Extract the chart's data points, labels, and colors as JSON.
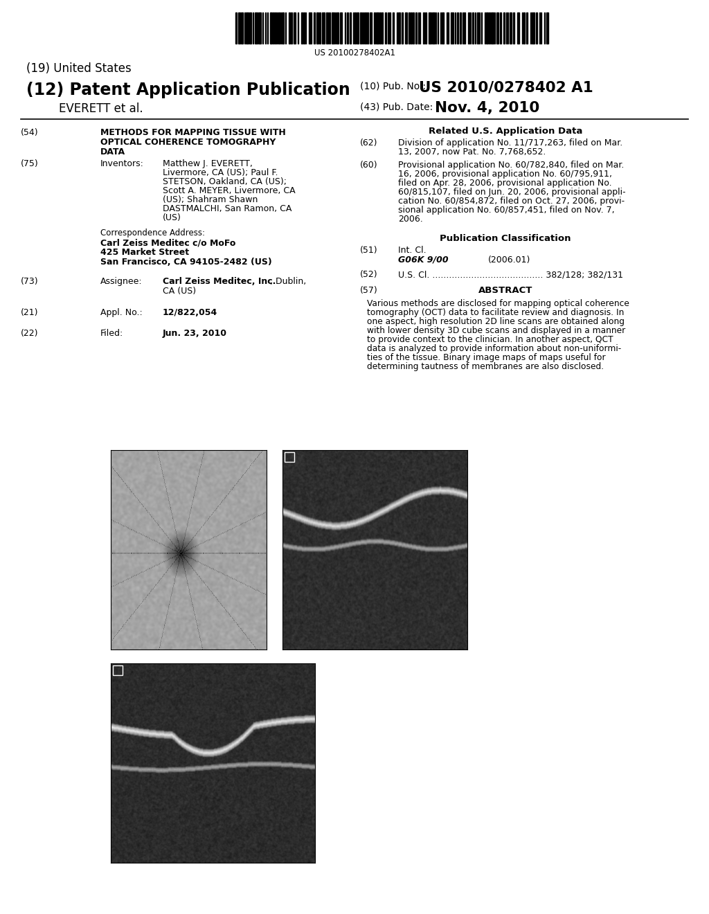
{
  "background_color": "#ffffff",
  "barcode_text": "US 20100278402A1",
  "title_19": "(19) United States",
  "title_12": "(12) Patent Application Publication",
  "title_everett": "EVERETT et al.",
  "pub_no_label": "(10) Pub. No.:",
  "pub_no_value": "US 2010/0278402 A1",
  "pub_date_label": "(43) Pub. Date:",
  "pub_date_value": "Nov. 4, 2010",
  "field_54_label": "(54)",
  "field_54_bold": "METHODS FOR MAPPING TISSUE WITH\nOPTICAL COHERENCE TOMOGRAPHY\nDATA",
  "field_75_label": "(75)",
  "field_75_title": "Inventors:",
  "corr_title": "Correspondence Address:",
  "corr_bold1": "Carl Zeiss Meditec c/o MoFo",
  "corr_bold2": "425 Market Street",
  "corr_bold3": "San Francisco, CA 94105-2482 (US)",
  "field_73_label": "(73)",
  "field_73_title": "Assignee:",
  "field_73_bold": "Carl Zeiss Meditec, Inc.",
  "field_73_rest": ", Dublin,",
  "field_73_line2": "CA (US)",
  "field_21_label": "(21)",
  "field_21_title": "Appl. No.:",
  "field_21_bold": "12/822,054",
  "field_22_label": "(22)",
  "field_22_title": "Filed:",
  "field_22_bold": "Jun. 23, 2010",
  "related_title": "Related U.S. Application Data",
  "field_62_label": "(62)",
  "field_62_lines": [
    "Division of application No. 11/717,263, filed on Mar.",
    "13, 2007, now Pat. No. 7,768,652."
  ],
  "field_60_label": "(60)",
  "field_60_lines": [
    "Provisional application No. 60/782,840, filed on Mar.",
    "16, 2006, provisional application No. 60/795,911,",
    "filed on Apr. 28, 2006, provisional application No.",
    "60/815,107, filed on Jun. 20, 2006, provisional appli-",
    "cation No. 60/854,872, filed on Oct. 27, 2006, provi-",
    "sional application No. 60/857,451, filed on Nov. 7,",
    "2006."
  ],
  "pub_class_title": "Publication Classification",
  "field_51_label": "(51)",
  "field_51_line1": "Int. Cl.",
  "field_51_italic": "G06K 9/00",
  "field_51_year": "(2006.01)",
  "field_52_label": "(52)",
  "field_52_text": "U.S. Cl. ........................................ 382/128; 382/131",
  "field_57_label": "(57)",
  "field_57_title": "ABSTRACT",
  "abstract_lines": [
    "Various methods are disclosed for mapping optical coherence",
    "tomography (OCT) data to facilitate review and diagnosis. In",
    "one aspect, high resolution 2D line scans are obtained along",
    "with lower density 3D cube scans and displayed in a manner",
    "to provide context to the clinician. In another aspect, QCT",
    "data is analyzed to provide information about non-uniformi-",
    "ties of the tissue. Binary image maps of maps useful for",
    "determining tautness of membranes are also disclosed."
  ],
  "inv_lines": [
    "Matthew J. EVERETT,",
    "Livermore, CA (US); Paul F.",
    "STETSON, Oakland, CA (US);",
    "Scott A. MEYER, Livermore, CA",
    "(US); Shahram Shawn",
    "DASTMALCHI, San Ramon, CA",
    "(US)"
  ]
}
